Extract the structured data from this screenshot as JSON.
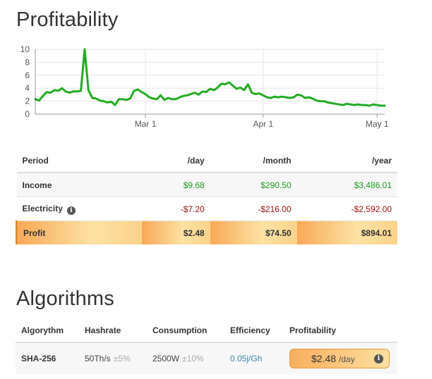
{
  "profitability": {
    "title": "Profitability"
  },
  "chart_data": {
    "type": "line",
    "title": "",
    "xlabel": "",
    "ylabel": "",
    "ylim": [
      0,
      10
    ],
    "yticks": [
      0,
      2,
      4,
      6,
      8,
      10
    ],
    "xticks": [
      {
        "label": "Mar 1",
        "day": 29
      },
      {
        "label": "Apr 1",
        "day": 60
      },
      {
        "label": "May 1",
        "day": 90
      }
    ],
    "x_range_days": [
      0,
      92
    ],
    "grid": true,
    "series": [
      {
        "color": "#22aa22",
        "x": [
          0,
          1,
          2,
          3,
          4,
          5,
          6,
          7,
          8,
          9,
          10,
          11,
          12,
          13,
          14,
          15,
          16,
          17,
          18,
          19,
          20,
          21,
          22,
          23,
          24,
          25,
          26,
          27,
          28,
          29,
          30,
          31,
          32,
          33,
          34,
          35,
          36,
          37,
          38,
          39,
          40,
          41,
          42,
          43,
          44,
          45,
          46,
          47,
          48,
          49,
          50,
          51,
          52,
          53,
          54,
          55,
          56,
          57,
          58,
          59,
          60,
          61,
          62,
          63,
          64,
          65,
          66,
          67,
          68,
          69,
          70,
          71,
          72,
          73,
          74,
          75,
          76,
          77,
          78,
          79,
          80,
          81,
          82,
          83,
          84,
          85,
          86,
          87,
          88,
          89,
          90,
          91,
          92
        ],
        "y": [
          2.3,
          2.1,
          2.8,
          3.4,
          3.3,
          3.7,
          3.6,
          4.0,
          3.5,
          3.3,
          3.5,
          3.5,
          3.6,
          10.0,
          3.7,
          2.5,
          2.4,
          2.1,
          2.0,
          1.8,
          1.9,
          1.4,
          2.3,
          2.3,
          2.2,
          2.4,
          3.6,
          3.8,
          3.4,
          3.1,
          2.6,
          2.4,
          2.3,
          2.9,
          2.2,
          2.5,
          2.3,
          2.3,
          2.6,
          2.8,
          2.9,
          3.1,
          3.3,
          3.0,
          3.5,
          3.4,
          3.9,
          3.7,
          4.1,
          4.7,
          4.6,
          4.9,
          4.4,
          3.9,
          4.1,
          3.7,
          4.6,
          3.3,
          3.1,
          3.2,
          2.9,
          2.6,
          2.5,
          2.7,
          2.6,
          2.7,
          2.6,
          2.5,
          2.6,
          3.0,
          2.9,
          2.5,
          2.6,
          2.4,
          2.1,
          2.0,
          2.0,
          1.8,
          1.7,
          1.6,
          1.5,
          1.4,
          1.6,
          1.5,
          1.4,
          1.5,
          1.4,
          1.4,
          1.3,
          1.5,
          1.4,
          1.3,
          1.3
        ]
      }
    ]
  },
  "period_table": {
    "headers": [
      "Period",
      "/day",
      "/month",
      "/year"
    ],
    "rows": {
      "income": {
        "label": "Income",
        "day": "$9.68",
        "month": "$290.50",
        "year": "$3,486.01"
      },
      "electricity": {
        "label": "Electricity",
        "day": "-$7.20",
        "month": "-$216.00",
        "year": "-$2,592.00"
      },
      "profit": {
        "label": "Profit",
        "day": "$2.48",
        "month": "$74.50",
        "year": "$894.01"
      }
    }
  },
  "algorithms": {
    "title": "Algorithms",
    "headers": [
      "Algorythm",
      "Hashrate",
      "Consumption",
      "Efficiency",
      "Profitability"
    ],
    "row": {
      "algorithm": "SHA-256",
      "hashrate": "50Th/s",
      "hashrate_tolerance": "±5%",
      "consumption": "2500W",
      "consumption_tolerance": "±10%",
      "efficiency": "0.05j/Gh",
      "profitability_value": "$2.48",
      "profitability_unit": "/day"
    }
  },
  "icons": {
    "info": "info-icon"
  },
  "colors": {
    "line": "#22aa22",
    "positive": "#1a9a1a",
    "negative": "#a01010",
    "profit_highlight": "#f9a957",
    "efficiency_link": "#3a87ad"
  }
}
